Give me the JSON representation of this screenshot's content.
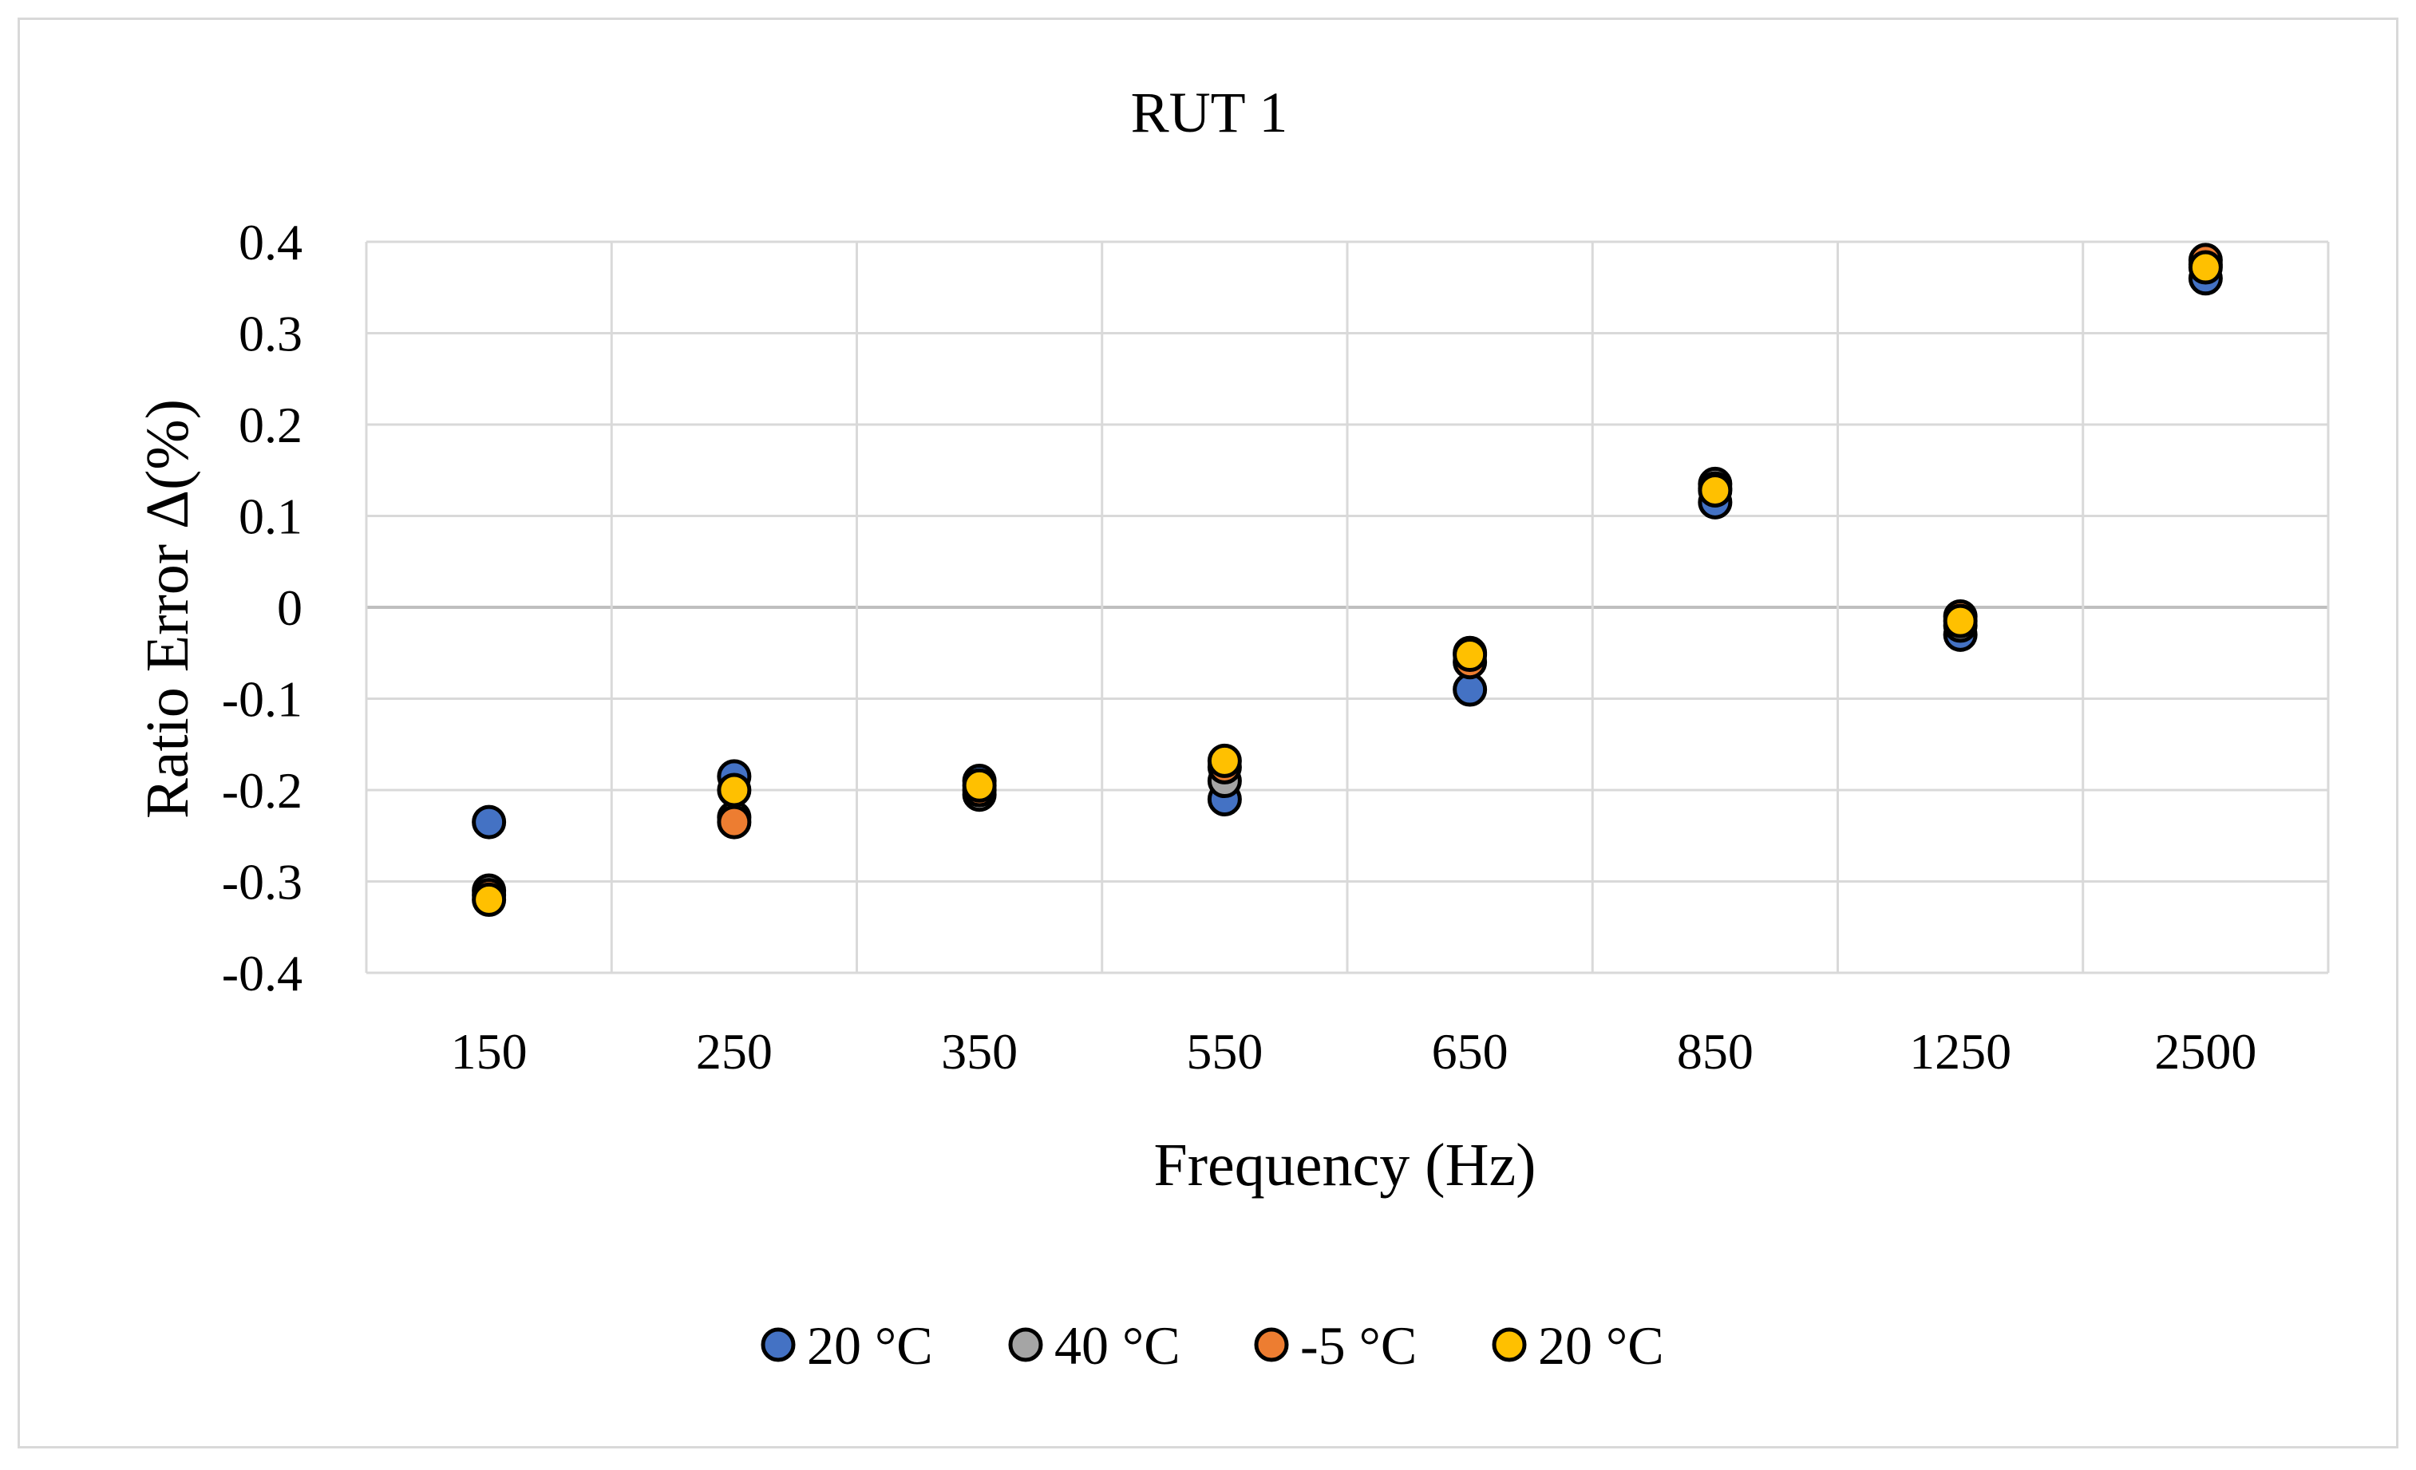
{
  "chart_data": {
    "type": "scatter",
    "title": "RUT 1",
    "xlabel": "Frequency (Hz)",
    "ylabel": "Ratio Error Δ(%)",
    "categories": [
      "150",
      "250",
      "350",
      "550",
      "650",
      "850",
      "1250",
      "2500"
    ],
    "ylim": [
      -0.4,
      0.4
    ],
    "yticks": [
      0.4,
      0.3,
      0.2,
      0.1,
      0,
      -0.1,
      -0.2,
      -0.3,
      -0.4
    ],
    "ytick_labels": [
      "0.4",
      "0.3",
      "0.2",
      "0.1",
      "0",
      "-0.1",
      "-0.2",
      "-0.3",
      "-0.4"
    ],
    "grid": true,
    "legend_position": "bottom",
    "series": [
      {
        "name": "20 °C",
        "color": "#4472c4",
        "values": [
          -0.235,
          -0.185,
          -0.19,
          -0.21,
          -0.09,
          0.115,
          -0.03,
          0.36
        ]
      },
      {
        "name": "40 °C",
        "color": "#a5a5a5",
        "values": [
          -0.31,
          -0.23,
          -0.205,
          -0.19,
          -0.05,
          0.135,
          -0.02,
          0.375
        ]
      },
      {
        "name": "-5 °C",
        "color": "#ed7d31",
        "values": [
          -0.315,
          -0.235,
          -0.2,
          -0.175,
          -0.06,
          0.13,
          -0.01,
          0.38
        ]
      },
      {
        "name": "20 °C",
        "color": "#ffc000",
        "values": [
          -0.32,
          -0.2,
          -0.195,
          -0.168,
          -0.052,
          0.128,
          -0.015,
          0.372
        ]
      }
    ]
  }
}
